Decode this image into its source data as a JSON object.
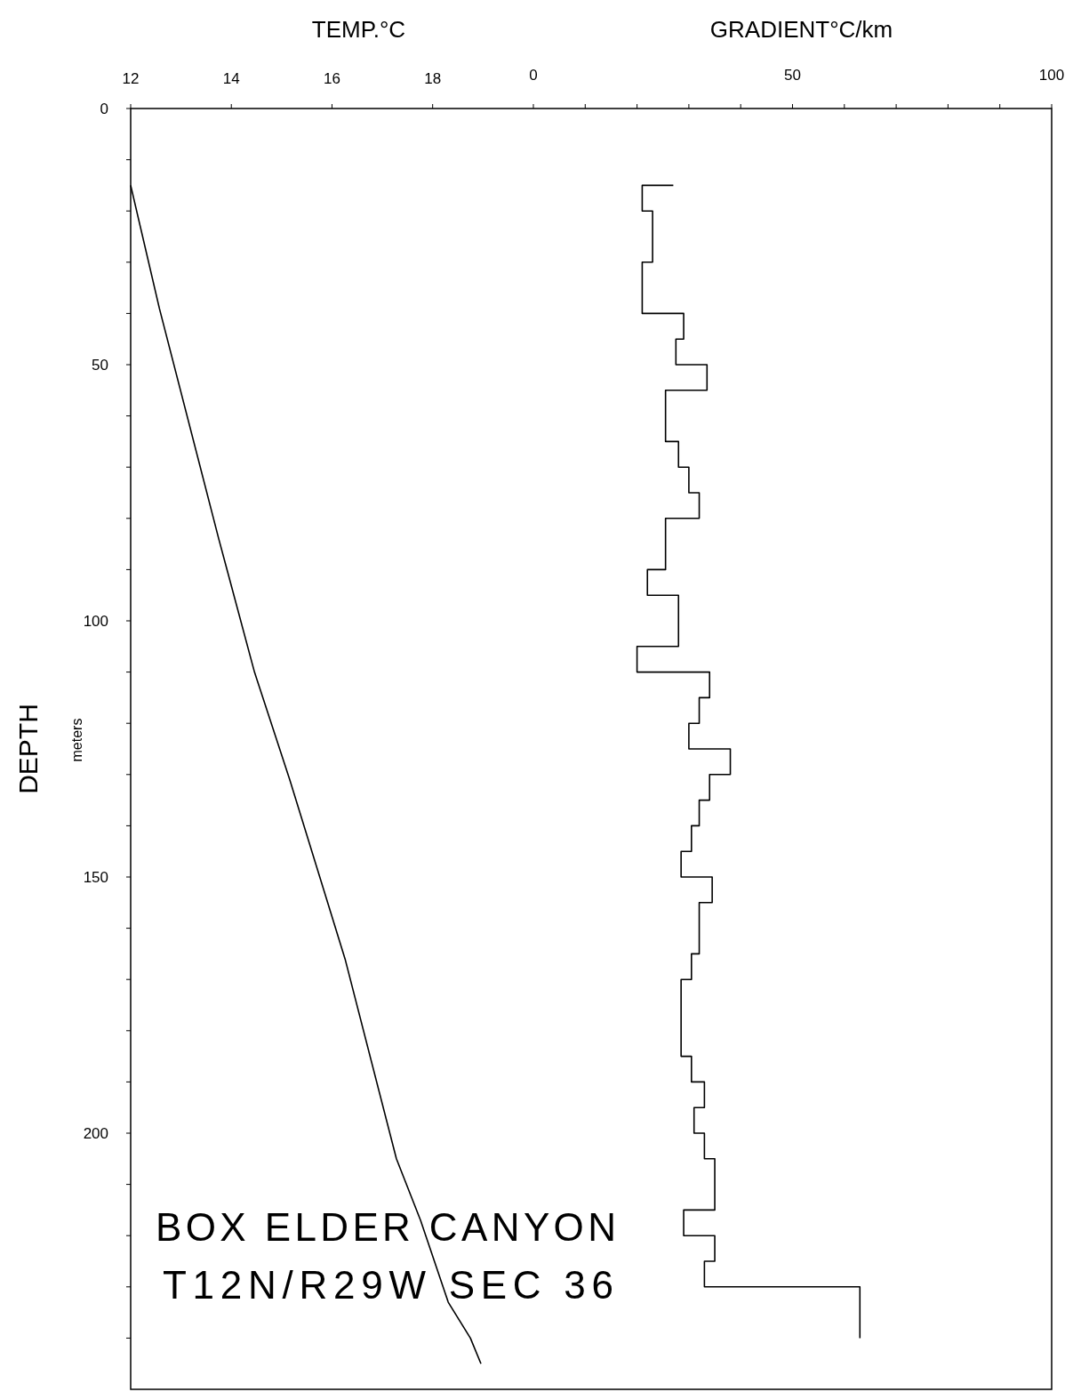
{
  "chart_data": {
    "type": "line",
    "xlabel": "TEMP.°C",
    "x2label": "GRADIENT°C/km",
    "ylabel": "DEPTH\nmeters",
    "xlim": [
      12,
      30.3
    ],
    "xticks": [
      12,
      14,
      16,
      18
    ],
    "x2lim": [
      -77.7,
      100
    ],
    "x2ticks": [
      0,
      {
        "value": 10,
        "label": null
      },
      {
        "value": 20,
        "label": null
      },
      {
        "value": 30,
        "label": null
      },
      {
        "value": 40,
        "label": null
      },
      50,
      {
        "value": 60,
        "label": null
      },
      {
        "value": 70,
        "label": null
      },
      {
        "value": 80,
        "label": null
      },
      {
        "value": 90,
        "label": null
      },
      100
    ],
    "ylim": [
      250,
      0
    ],
    "yticks": [
      0,
      {
        "value": 10,
        "label": null
      },
      {
        "value": 20,
        "label": null
      },
      {
        "value": 30,
        "label": null
      },
      {
        "value": 40,
        "label": null
      },
      50,
      {
        "value": 60,
        "label": null
      },
      {
        "value": 70,
        "label": null
      },
      {
        "value": 80,
        "label": null
      },
      {
        "value": 90,
        "label": null
      },
      100,
      {
        "value": 110,
        "label": null
      },
      {
        "value": 120,
        "label": null
      },
      {
        "value": 130,
        "label": null
      },
      {
        "value": 140,
        "label": null
      },
      150,
      {
        "value": 160,
        "label": null
      },
      {
        "value": 170,
        "label": null
      },
      {
        "value": 180,
        "label": null
      },
      {
        "value": 190,
        "label": null
      },
      200,
      {
        "value": 210,
        "label": null
      },
      {
        "value": 220,
        "label": null
      },
      {
        "value": 230,
        "label": null
      },
      {
        "value": 240,
        "label": null
      }
    ],
    "grid": false,
    "marker": "none",
    "line_style": "solid",
    "series": [
      {
        "color": "#000000",
        "x": [
          12.0,
          12.57,
          13.75,
          14.46,
          15.16,
          16.26,
          17.28,
          17.76,
          18.31,
          18.75,
          18.96
        ],
        "values": [
          15,
          39,
          84,
          110,
          131,
          166,
          205,
          217,
          233,
          240,
          245
        ]
      },
      {
        "axis": "x2",
        "color": "#000000",
        "x": [
          27,
          21,
          21,
          23,
          23,
          21,
          21,
          29,
          29,
          27.5,
          27.5,
          33.5,
          33.5,
          25.5,
          25.5,
          28,
          28,
          30,
          30,
          32,
          32,
          25.5,
          25.5,
          22,
          22,
          28,
          28,
          20,
          20,
          34,
          34,
          32,
          32,
          30,
          30,
          38,
          38,
          34,
          34,
          32,
          32,
          30.5,
          30.5,
          28.5,
          28.5,
          34.5,
          34.5,
          32,
          32,
          30.5,
          30.5,
          28.5,
          28.5,
          30.5,
          30.5,
          33,
          33,
          31,
          31,
          33,
          33,
          35,
          35,
          29,
          29,
          35,
          35,
          33,
          33,
          63,
          63
        ],
        "values": [
          15,
          15,
          20,
          20,
          30,
          30,
          40,
          40,
          45,
          45,
          50,
          50,
          55,
          55,
          65,
          65,
          70,
          70,
          75,
          75,
          80,
          80,
          90,
          90,
          95,
          95,
          105,
          105,
          110,
          110,
          115,
          115,
          120,
          120,
          125,
          125,
          130,
          130,
          135,
          135,
          140,
          140,
          145,
          145,
          150,
          150,
          155,
          155,
          165,
          165,
          170,
          170,
          185,
          185,
          190,
          190,
          195,
          195,
          200,
          200,
          205,
          205,
          215,
          215,
          220,
          220,
          225,
          225,
          230,
          230,
          240
        ]
      }
    ],
    "annotations": [
      "BOX ELDER CANYON",
      "T12N/R29W  SEC 36"
    ]
  }
}
